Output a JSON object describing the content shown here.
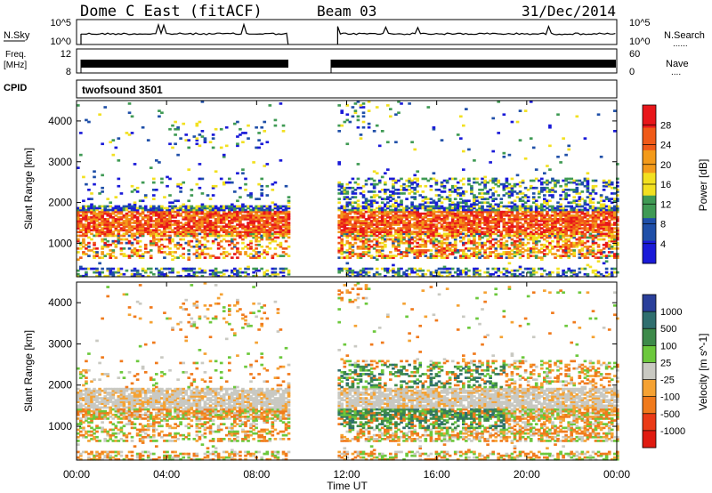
{
  "header": {
    "station": "Dome C East (fitACF)",
    "beam": "Beam 03",
    "date": "31/Dec/2014"
  },
  "nsky_panel": {
    "label": "N.Sky",
    "left_ticks": [
      "10^5",
      "10^0"
    ],
    "right_ticks": [
      "10^5",
      "10^0"
    ],
    "right_label": "N.Search",
    "right_label_marker": "......"
  },
  "freq_panel": {
    "label_line1": "Freq.",
    "label_line2": "[MHz]",
    "left_ticks": [
      "12",
      "8"
    ],
    "right_ticks": [
      "60",
      "0"
    ],
    "right_label": "Nave",
    "right_label_marker": "...."
  },
  "cpid_panel": {
    "label": "CPID",
    "program": "twofsound 3501"
  },
  "x_axis": {
    "label": "Time UT",
    "ticks": [
      "00:00",
      "04:00",
      "08:00",
      "12:00",
      "16:00",
      "20:00",
      "00:00"
    ]
  },
  "chart_data": [
    {
      "type": "heatmap",
      "name": "power",
      "ylabel": "Slant Range [km]",
      "yticks": [
        "4000",
        "3000",
        "2000",
        "1000"
      ],
      "ylim": [
        180,
        4500
      ],
      "xlim_hours": [
        0,
        24
      ],
      "data_gap_hours": [
        9.4,
        11.6
      ],
      "colorbar": {
        "label": "Power [dB]",
        "ticks": [
          "28",
          "24",
          "20",
          "16",
          "12",
          "8",
          "4"
        ],
        "colors": [
          "#e8161a",
          "#f05a18",
          "#f39a1a",
          "#f2e020",
          "#3f9a54",
          "#1f4fa8",
          "#1a1ad8"
        ]
      }
    },
    {
      "type": "heatmap",
      "name": "velocity",
      "ylabel": "Slant Range [km]",
      "yticks": [
        "4000",
        "3000",
        "2000",
        "1000"
      ],
      "ylim": [
        180,
        4500
      ],
      "xlim_hours": [
        0,
        24
      ],
      "data_gap_hours": [
        9.4,
        11.6
      ],
      "colorbar": {
        "label": "Velocity [m s^-1]",
        "ticks": [
          "1000",
          "500",
          "100",
          "25",
          "-25",
          "-100",
          "-500",
          "-1000"
        ],
        "colors": [
          "#2a3f9a",
          "#2f6e6e",
          "#3d8a4a",
          "#6cc83c",
          "#c9c9c2",
          "#f5a233",
          "#f07a1c",
          "#ea3a16",
          "#e01a10"
        ]
      }
    }
  ]
}
